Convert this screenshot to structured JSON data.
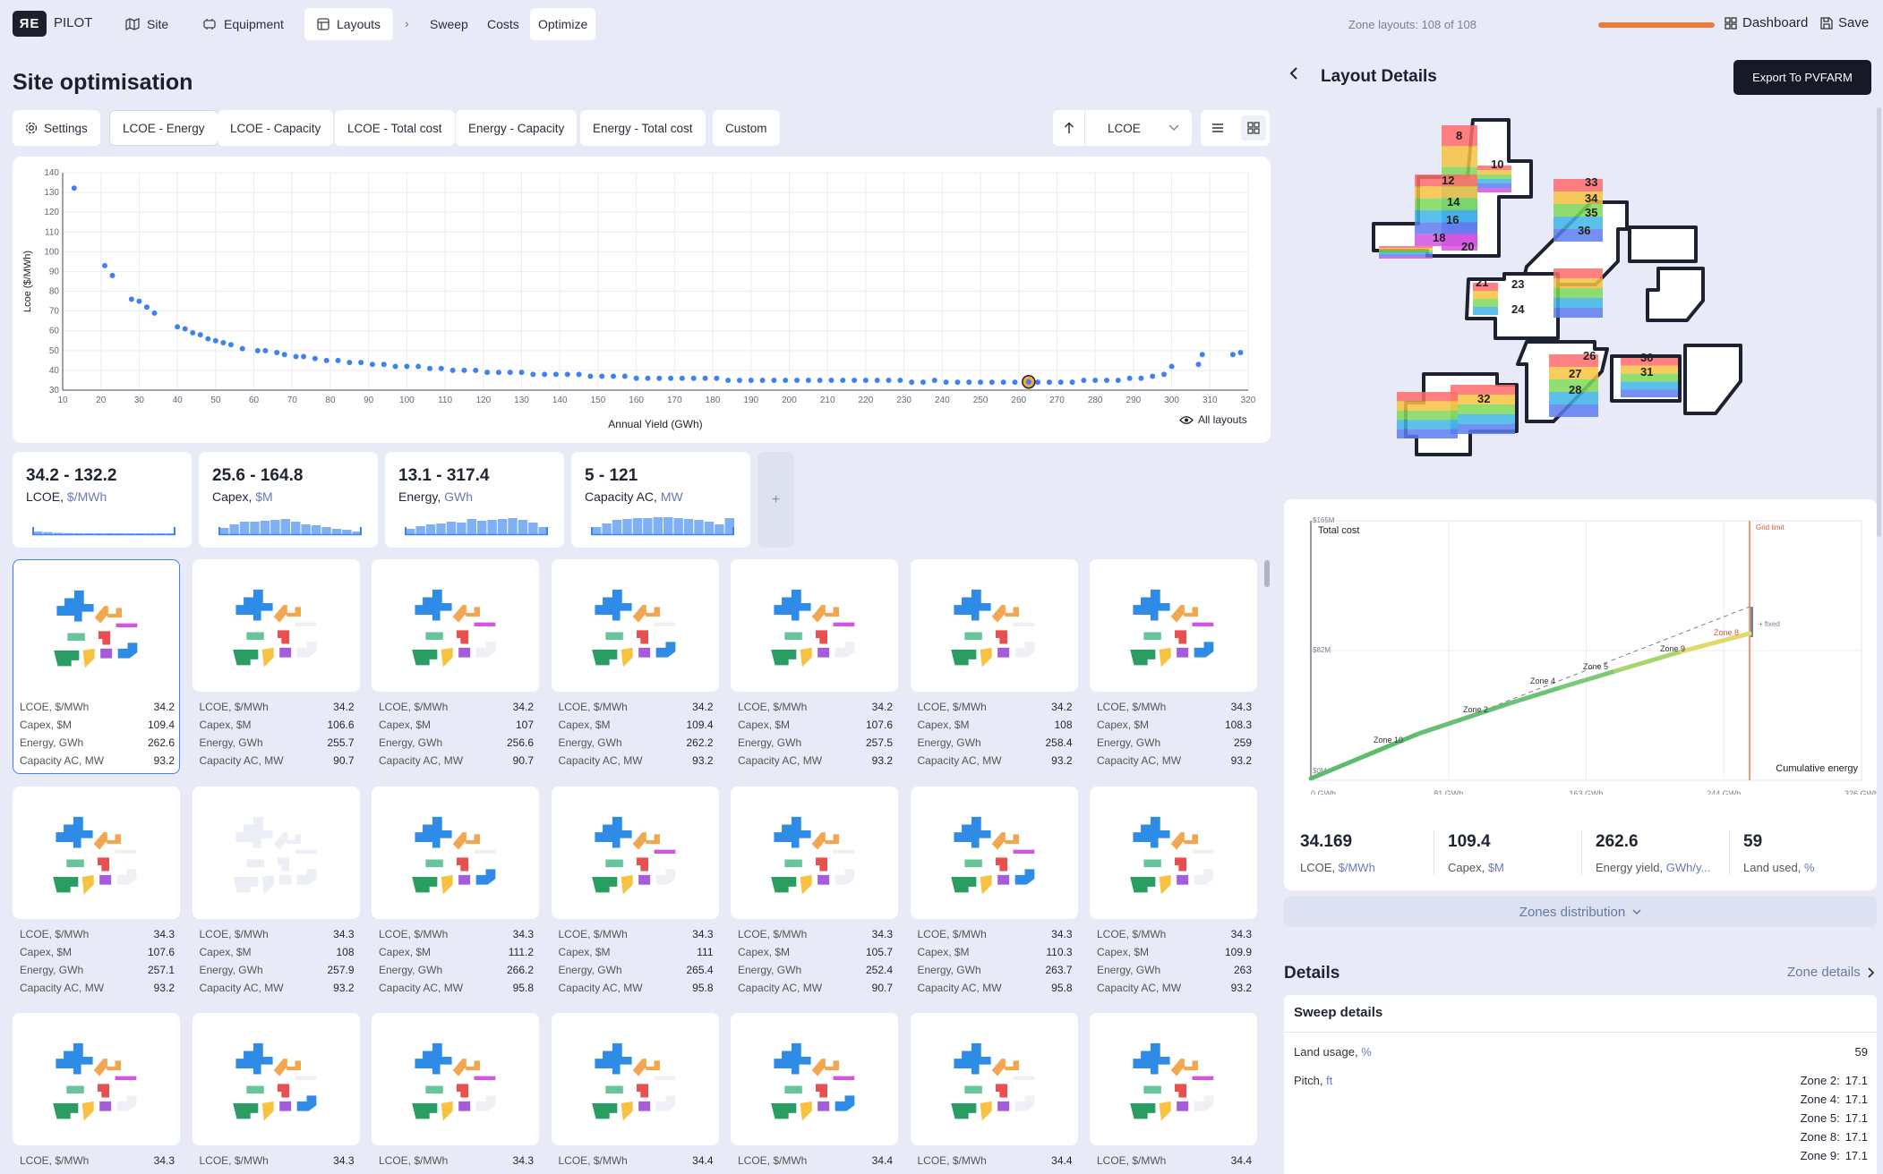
{
  "topbar": {
    "brand": "PILOT",
    "nav": [
      {
        "label": "Site"
      },
      {
        "label": "Equipment"
      },
      {
        "label": "Layouts"
      }
    ],
    "steps": [
      "Sweep",
      "Costs",
      "Optimize"
    ],
    "zone_layouts": "Zone layouts: 108 of 108",
    "dashboard": "Dashboard",
    "save": "Save"
  },
  "main": {
    "title": "Site optimisation",
    "settings": "Settings",
    "tabs": [
      "LCOE - Energy",
      "LCOE - Capacity",
      "LCOE - Total cost",
      "Energy - Capacity",
      "Energy - Total cost",
      "Custom"
    ],
    "sort_select": "LCOE",
    "all_layouts": "All layouts"
  },
  "chart_data": {
    "type": "scatter",
    "xlabel": "Annual Yield (GWh)",
    "ylabel": "Lcoe ($/MWh)",
    "xlim": [
      10,
      320
    ],
    "ylim": [
      30,
      140
    ],
    "xticks": [
      10,
      20,
      30,
      40,
      50,
      60,
      70,
      80,
      90,
      100,
      110,
      120,
      130,
      140,
      150,
      160,
      170,
      180,
      190,
      200,
      210,
      220,
      230,
      240,
      250,
      260,
      270,
      280,
      290,
      300,
      310,
      320
    ],
    "yticks": [
      30,
      40,
      50,
      60,
      70,
      80,
      90,
      100,
      110,
      120,
      130,
      140
    ],
    "grid": true,
    "highlight": {
      "x": 262.6,
      "y": 34.2
    },
    "x": [
      13,
      21,
      23,
      28,
      30,
      32,
      34,
      40,
      42,
      44,
      46,
      48,
      50,
      52,
      54,
      57,
      61,
      63,
      66,
      68,
      71,
      73,
      76,
      79,
      82,
      85,
      88,
      91,
      94,
      97,
      100,
      103,
      106,
      109,
      112,
      115,
      118,
      121,
      124,
      127,
      130,
      133,
      136,
      139,
      142,
      145,
      148,
      151,
      154,
      157,
      160,
      163,
      166,
      169,
      172,
      175,
      178,
      181,
      184,
      187,
      190,
      193,
      196,
      199,
      202,
      205,
      208,
      211,
      214,
      217,
      220,
      223,
      226,
      229,
      232,
      235,
      238,
      241,
      244,
      247,
      250,
      253,
      256,
      259,
      262,
      265,
      268,
      271,
      274,
      277,
      280,
      283,
      286,
      289,
      292,
      295,
      298,
      300,
      307,
      308,
      316,
      318
    ],
    "y": [
      132.2,
      93,
      88,
      76,
      75,
      72,
      69,
      62,
      61,
      59,
      58,
      56,
      55,
      54,
      53,
      51,
      50,
      50,
      49,
      48,
      47,
      47,
      46,
      45,
      45,
      44,
      44,
      43,
      43,
      42,
      42,
      42,
      41,
      41,
      40,
      40,
      40,
      39,
      39,
      39,
      39,
      38,
      38,
      38,
      38,
      38,
      37,
      37,
      37,
      37,
      36,
      36,
      36,
      36,
      36,
      36,
      36,
      36,
      35,
      35,
      35,
      35,
      35,
      35,
      35,
      35,
      35,
      35,
      35,
      35,
      35,
      35,
      35,
      35,
      34,
      34,
      35,
      34,
      34,
      34,
      34,
      34,
      34,
      34,
      34.2,
      34,
      34,
      34,
      34,
      35,
      35,
      35,
      35,
      36,
      36,
      37,
      38,
      42,
      43,
      48,
      48,
      49
    ]
  },
  "ranges": [
    {
      "range": "34.2 - 132.2",
      "label": "LCOE,",
      "unit": "$/MWh",
      "hist": [
        0.15,
        0.12,
        0.08,
        0.06,
        0.05,
        0.05,
        0.05,
        0.05,
        0.05,
        0.05,
        0.05,
        0.05,
        0.05,
        0.05
      ]
    },
    {
      "range": "25.6 - 164.8",
      "label": "Capex,",
      "unit": "$M",
      "hist": [
        0.35,
        0.55,
        0.7,
        0.7,
        0.75,
        0.8,
        0.85,
        0.7,
        0.55,
        0.5,
        0.4,
        0.3,
        0.25,
        0.15
      ]
    },
    {
      "range": "13.1 - 317.4",
      "label": "Energy,",
      "unit": "GWh",
      "hist": [
        0.3,
        0.45,
        0.55,
        0.6,
        0.7,
        0.65,
        0.85,
        0.75,
        0.8,
        0.85,
        0.9,
        0.8,
        0.65,
        0.4
      ]
    },
    {
      "range": "5 - 121",
      "label": "Capacity AC,",
      "unit": "MW",
      "hist": [
        0.4,
        0.6,
        0.8,
        0.85,
        0.9,
        0.9,
        0.95,
        0.95,
        0.9,
        0.85,
        0.8,
        0.7,
        0.55,
        0.9
      ]
    }
  ],
  "metric_labels": [
    "LCOE, $/MWh",
    "Capex, $M",
    "Energy, GWh",
    "Capacity AC, MW"
  ],
  "layouts": [
    [
      "34.2",
      "109.4",
      "262.6",
      "93.2"
    ],
    [
      "34.2",
      "106.6",
      "255.7",
      "90.7"
    ],
    [
      "34.2",
      "107",
      "256.6",
      "90.7"
    ],
    [
      "34.2",
      "109.4",
      "262.2",
      "93.2"
    ],
    [
      "34.2",
      "107.6",
      "257.5",
      "93.2"
    ],
    [
      "34.2",
      "108",
      "258.4",
      "93.2"
    ],
    [
      "34.3",
      "108.3",
      "259",
      "93.2"
    ],
    [
      "34.3",
      "107.6",
      "257.1",
      "93.2"
    ],
    [
      "34.3",
      "108",
      "257.9",
      "93.2"
    ],
    [
      "34.3",
      "111.2",
      "266.2",
      "95.8"
    ],
    [
      "34.3",
      "111",
      "265.4",
      "95.8"
    ],
    [
      "34.3",
      "105.7",
      "252.4",
      "90.7"
    ],
    [
      "34.3",
      "110.3",
      "263.7",
      "95.8"
    ],
    [
      "34.3",
      "109.9",
      "263",
      "93.2"
    ],
    [
      "34.3",
      "",
      "",
      ""
    ],
    [
      "34.3",
      "",
      "",
      ""
    ],
    [
      "34.3",
      "",
      "",
      ""
    ],
    [
      "34.4",
      "",
      "",
      ""
    ],
    [
      "34.4",
      "",
      "",
      ""
    ],
    [
      "34.4",
      "",
      "",
      ""
    ],
    [
      "34.4",
      "",
      "",
      ""
    ]
  ],
  "detail": {
    "title": "Layout Details",
    "export": "Export To PVFARM",
    "zone_labels": [
      "8",
      "10",
      "12",
      "14",
      "16",
      "18",
      "20",
      "33",
      "34",
      "35",
      "36",
      "21",
      "23",
      "24",
      "26",
      "27",
      "28",
      "30",
      "31",
      "32"
    ],
    "cost_chart": {
      "title": "Total cost",
      "grid_limit": "Grid limit",
      "fixed": "+ fixed",
      "xlabel": "Cumulative energy",
      "yticks": [
        "$165M",
        "$82M",
        "$0M"
      ],
      "xticks": [
        "0 GWh",
        "81 GWh",
        "163 GWh",
        "244 GWh",
        "326 GWh"
      ],
      "zones": [
        "Zone 10",
        "Zone 2",
        "Zone 4",
        "Zone 5",
        "Zone 9",
        "Zone 8"
      ]
    },
    "kpis": [
      {
        "value": "34.169",
        "label": "LCOE,",
        "unit": "$/MWh"
      },
      {
        "value": "109.4",
        "label": "Capex,",
        "unit": "$M"
      },
      {
        "value": "262.6",
        "label": "Energy yield,",
        "unit": "GWh/y..."
      },
      {
        "value": "59",
        "label": "Land used,",
        "unit": "%"
      }
    ],
    "zones_distribution": "Zones distribution",
    "details_title": "Details",
    "zone_details": "Zone details",
    "sweep_title": "Sweep details",
    "land_usage_label": "Land usage,",
    "land_usage_unit": "%",
    "land_usage_value": "59",
    "pitch_label": "Pitch,",
    "pitch_unit": "ft",
    "pitch": [
      {
        "zone": "Zone 2:",
        "value": "17.1"
      },
      {
        "zone": "Zone 4:",
        "value": "17.1"
      },
      {
        "zone": "Zone 5:",
        "value": "17.1"
      },
      {
        "zone": "Zone 8:",
        "value": "17.1"
      },
      {
        "zone": "Zone 9:",
        "value": "17.1"
      }
    ]
  }
}
